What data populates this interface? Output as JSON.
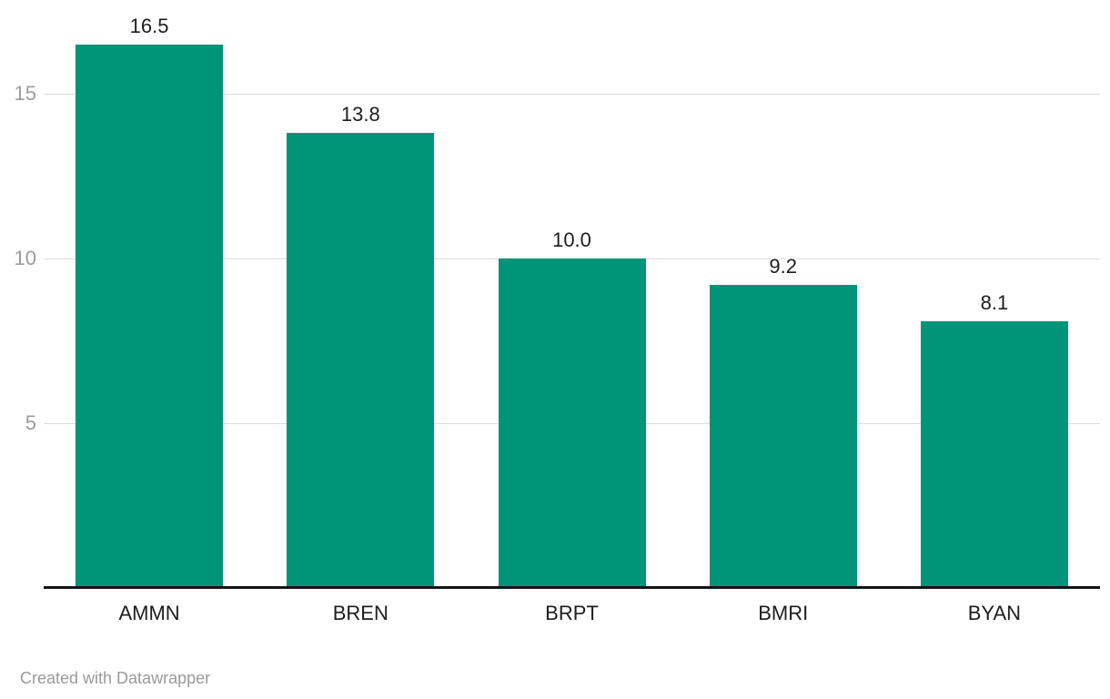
{
  "chart_data": {
    "type": "bar",
    "categories": [
      "AMMN",
      "BREN",
      "BRPT",
      "BMRI",
      "BYAN"
    ],
    "values": [
      16.5,
      13.8,
      10.0,
      9.2,
      8.1
    ],
    "value_labels": [
      "16.5",
      "13.8",
      "10.0",
      "9.2",
      "8.1"
    ],
    "title": "",
    "xlabel": "",
    "ylabel": "",
    "ylim": [
      0,
      17.8
    ],
    "yticks": [
      5,
      10,
      15
    ],
    "ytick_labels": [
      "5",
      "10",
      "15"
    ],
    "grid": "horizontal",
    "legend": "none",
    "bar_color": "#009478"
  },
  "colors": {
    "bar": "#009478",
    "label_text": "#1d1d1d",
    "tick_text": "#9c9c9c",
    "gridline": "#dcdcdc",
    "axis_line": "#141414",
    "footer_text": "#9a9a9a",
    "background": "#ffffff"
  },
  "footer": {
    "attribution": "Created with Datawrapper"
  }
}
